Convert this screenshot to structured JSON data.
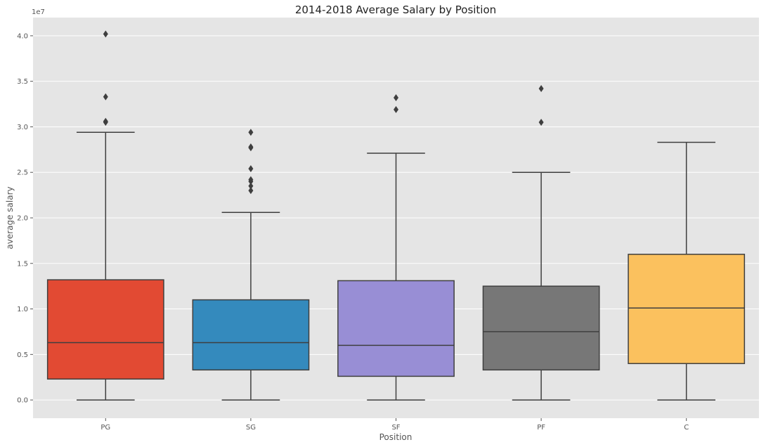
{
  "chart_data": {
    "type": "box",
    "title": "2014-2018 Average Salary by Position",
    "xlabel": "Position",
    "ylabel": "average salary",
    "y_scale_label": "1e7",
    "ylim": [
      -0.2,
      4.2
    ],
    "y_ticks": [
      "0.0",
      "0.5",
      "1.0",
      "1.5",
      "2.0",
      "2.5",
      "3.0",
      "3.5",
      "4.0"
    ],
    "grid": true,
    "categories": [
      "PG",
      "SG",
      "SF",
      "PF",
      "C"
    ],
    "boxes": [
      {
        "name": "PG",
        "color": "#E24A33",
        "whisker_low": 0.0,
        "q1": 0.23,
        "median": 0.63,
        "q3": 1.32,
        "whisker_high": 2.94,
        "outliers": [
          3.05,
          3.06,
          3.33,
          4.02
        ]
      },
      {
        "name": "SG",
        "color": "#348ABD",
        "whisker_low": 0.0,
        "q1": 0.33,
        "median": 0.63,
        "q3": 1.1,
        "whisker_high": 2.06,
        "outliers": [
          2.3,
          2.35,
          2.4,
          2.42,
          2.54,
          2.77,
          2.78,
          2.94
        ]
      },
      {
        "name": "SF",
        "color": "#988ED5",
        "whisker_low": 0.0,
        "q1": 0.26,
        "median": 0.6,
        "q3": 1.31,
        "whisker_high": 2.71,
        "outliers": [
          3.19,
          3.32
        ]
      },
      {
        "name": "PF",
        "color": "#777777",
        "whisker_low": 0.0,
        "q1": 0.33,
        "median": 0.75,
        "q3": 1.25,
        "whisker_high": 2.5,
        "outliers": [
          3.05,
          3.42
        ]
      },
      {
        "name": "C",
        "color": "#FBC15E",
        "whisker_low": 0.0,
        "q1": 0.4,
        "median": 1.01,
        "q3": 1.6,
        "whisker_high": 2.83,
        "outliers": []
      }
    ]
  }
}
